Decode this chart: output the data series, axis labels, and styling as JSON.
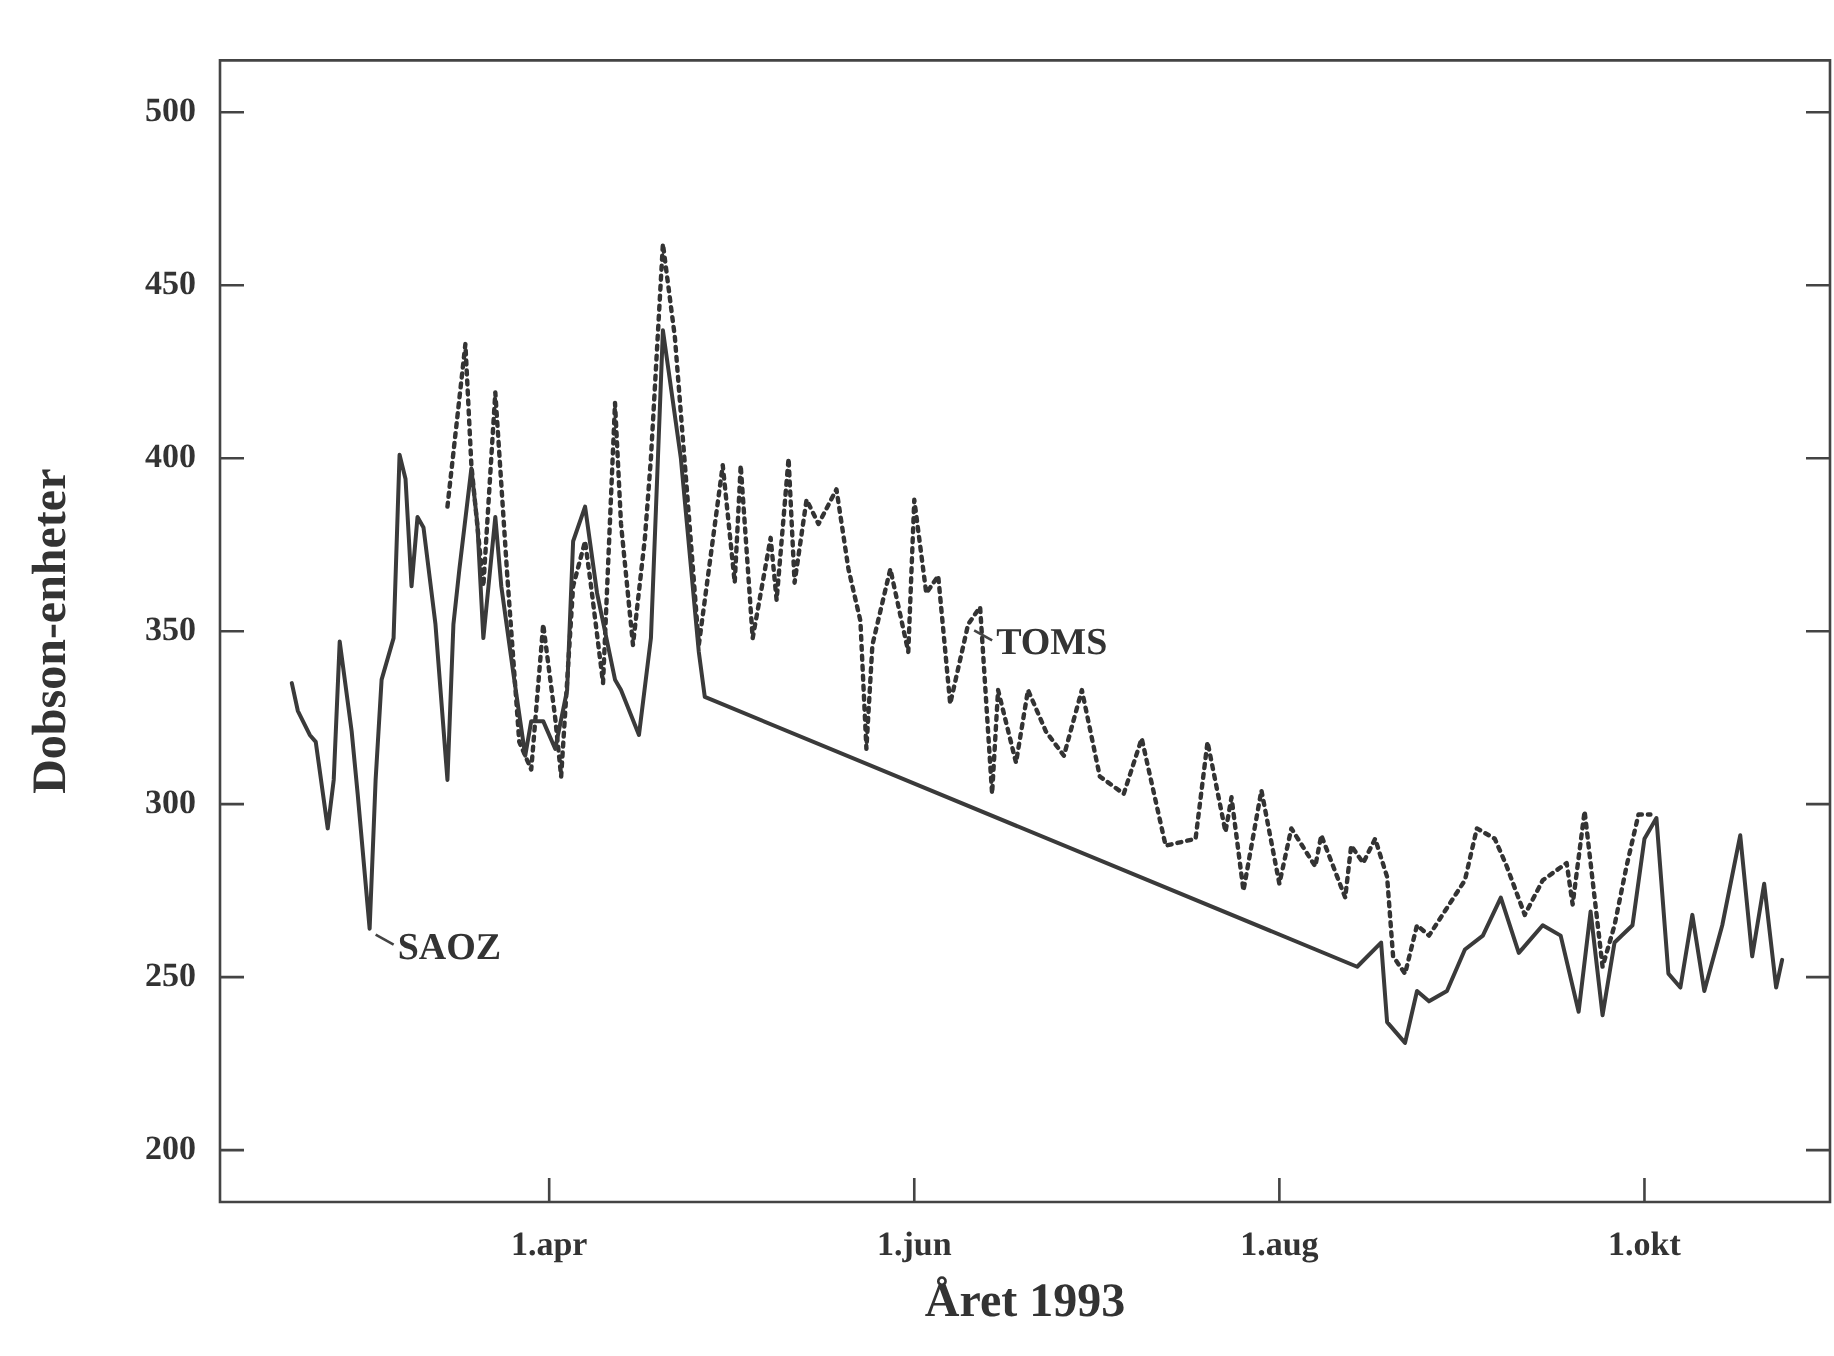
{
  "chart_data": {
    "type": "line",
    "xlabel": "Året 1993",
    "ylabel": "Dobson-enheter",
    "xlim": [
      "1993-02-05",
      "1993-11-01"
    ],
    "xticks": [
      {
        "value": "1993-04-01",
        "label": "1.apr"
      },
      {
        "value": "1993-06-01",
        "label": "1.jun"
      },
      {
        "value": "1993-08-01",
        "label": "1.aug"
      },
      {
        "value": "1993-10-01",
        "label": "1.okt"
      }
    ],
    "ylim": [
      185,
      515
    ],
    "yticks": [
      200,
      250,
      300,
      350,
      400,
      450,
      500
    ],
    "grid": false,
    "legend": false,
    "marker": "none",
    "series": [
      {
        "color": "#3a3a3a",
        "line_style": "solid",
        "x": [
          "1993-02-17",
          "1993-02-18",
          "1993-02-20",
          "1993-02-21",
          "1993-02-23",
          "1993-02-24",
          "1993-02-25",
          "1993-02-27",
          "1993-02-28",
          "1993-03-02",
          "1993-03-03",
          "1993-03-04",
          "1993-03-05",
          "1993-03-06",
          "1993-03-07",
          "1993-03-08",
          "1993-03-09",
          "1993-03-10",
          "1993-03-11",
          "1993-03-13",
          "1993-03-15",
          "1993-03-16",
          "1993-03-17",
          "1993-03-19",
          "1993-03-20",
          "1993-03-21",
          "1993-03-23",
          "1993-03-24",
          "1993-03-26",
          "1993-03-28",
          "1993-03-29",
          "1993-03-31",
          "1993-04-02",
          "1993-04-04",
          "1993-04-05",
          "1993-04-07",
          "1993-04-09",
          "1993-04-12",
          "1993-04-13",
          "1993-04-16",
          "1993-04-18",
          "1993-04-20",
          "1993-04-23",
          "1993-04-26",
          "1993-04-27",
          "1993-08-14",
          "1993-08-18",
          "1993-08-19",
          "1993-08-22",
          "1993-08-24",
          "1993-08-26",
          "1993-08-29",
          "1993-09-01",
          "1993-09-04",
          "1993-09-07",
          "1993-09-10",
          "1993-09-14",
          "1993-09-17",
          "1993-09-20",
          "1993-09-22",
          "1993-09-24",
          "1993-09-26",
          "1993-09-29",
          "1993-10-01",
          "1993-10-03",
          "1993-10-05",
          "1993-10-07",
          "1993-10-09",
          "1993-10-11",
          "1993-10-14",
          "1993-10-17",
          "1993-10-19",
          "1993-10-21",
          "1993-10-23",
          "1993-10-24"
        ],
        "values": [
          335,
          327,
          320,
          318,
          293,
          307,
          347,
          321,
          303,
          264,
          307,
          336,
          342,
          348,
          401,
          394,
          363,
          383,
          380,
          352,
          307,
          352,
          368,
          397,
          381,
          348,
          383,
          363,
          338,
          314,
          324,
          324,
          316,
          333,
          376,
          386,
          361,
          336,
          333,
          320,
          348,
          437,
          400,
          344,
          331,
          253,
          260,
          237,
          231,
          246,
          243,
          246,
          258,
          262,
          273,
          257,
          265,
          262,
          240,
          269,
          239,
          260,
          265,
          290,
          296,
          251,
          247,
          268,
          246,
          265,
          291,
          256,
          277,
          247,
          255
        ]
      },
      {
        "color": "#333333",
        "line_style": "dotted",
        "x": [
          "1993-03-15",
          "1993-03-18",
          "1993-03-19",
          "1993-03-21",
          "1993-03-23",
          "1993-03-25",
          "1993-03-27",
          "1993-03-29",
          "1993-03-31",
          "1993-04-02",
          "1993-04-03",
          "1993-04-05",
          "1993-04-07",
          "1993-04-08",
          "1993-04-10",
          "1993-04-12",
          "1993-04-13",
          "1993-04-15",
          "1993-04-17",
          "1993-04-18",
          "1993-04-20",
          "1993-04-22",
          "1993-04-24",
          "1993-04-26",
          "1993-04-28",
          "1993-04-30",
          "1993-05-02",
          "1993-05-03",
          "1993-05-05",
          "1993-05-08",
          "1993-05-09",
          "1993-05-11",
          "1993-05-12",
          "1993-05-14",
          "1993-05-16",
          "1993-05-19",
          "1993-05-21",
          "1993-05-23",
          "1993-05-24",
          "1993-05-25",
          "1993-05-28",
          "1993-05-31",
          "1993-06-01",
          "1993-06-03",
          "1993-06-05",
          "1993-06-07",
          "1993-06-10",
          "1993-06-12",
          "1993-06-14",
          "1993-06-15",
          "1993-06-18",
          "1993-06-20",
          "1993-06-23",
          "1993-06-26",
          "1993-06-29",
          "1993-07-02",
          "1993-07-06",
          "1993-07-09",
          "1993-07-13",
          "1993-07-18",
          "1993-07-20",
          "1993-07-23",
          "1993-07-24",
          "1993-07-26",
          "1993-07-29",
          "1993-08-01",
          "1993-08-03",
          "1993-08-07",
          "1993-08-08",
          "1993-08-12",
          "1993-08-13",
          "1993-08-15",
          "1993-08-17",
          "1993-08-19",
          "1993-08-20",
          "1993-08-22",
          "1993-08-24",
          "1993-08-26",
          "1993-08-29",
          "1993-09-01",
          "1993-09-03",
          "1993-09-06",
          "1993-09-08",
          "1993-09-11",
          "1993-09-14",
          "1993-09-18",
          "1993-09-19",
          "1993-09-21",
          "1993-09-24",
          "1993-09-26",
          "1993-09-28",
          "1993-09-30",
          "1993-10-02"
        ],
        "values": [
          386,
          433,
          398,
          363,
          419,
          366,
          318,
          310,
          352,
          325,
          308,
          363,
          376,
          363,
          335,
          416,
          381,
          346,
          377,
          400,
          462,
          435,
          391,
          346,
          372,
          398,
          364,
          398,
          348,
          377,
          359,
          400,
          364,
          388,
          381,
          391,
          368,
          353,
          316,
          346,
          368,
          344,
          388,
          361,
          366,
          329,
          352,
          357,
          303,
          333,
          312,
          333,
          321,
          314,
          333,
          308,
          303,
          319,
          288,
          290,
          318,
          292,
          302,
          275,
          304,
          277,
          293,
          282,
          291,
          273,
          288,
          283,
          290,
          279,
          256,
          251,
          265,
          262,
          270,
          278,
          293,
          290,
          282,
          268,
          278,
          283,
          271,
          298,
          253,
          265,
          282,
          297,
          297
        ]
      }
    ],
    "annotations": [
      {
        "text": "SAOZ",
        "x": "1993-03-02",
        "y": 264
      },
      {
        "text": "TOMS",
        "x": "1993-06-10",
        "y": 352
      }
    ]
  }
}
